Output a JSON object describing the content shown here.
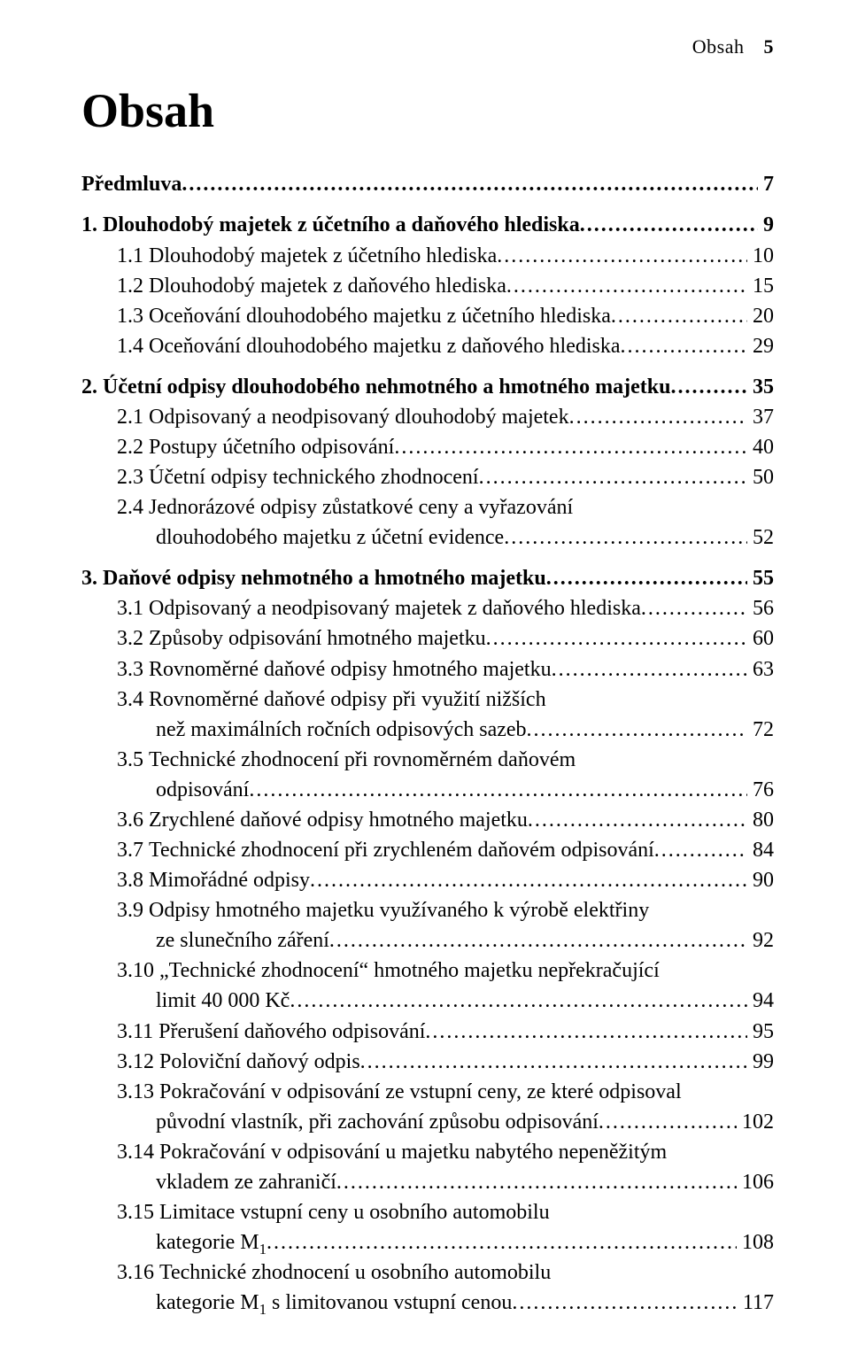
{
  "running_head": {
    "label": "Obsah",
    "page_number": "5"
  },
  "title": "Obsah",
  "typography": {
    "title_fontsize_pt": 40,
    "body_fontsize_pt": 18,
    "running_head_fontsize_pt": 16,
    "font_family": "Times New Roman",
    "text_color": "#000000",
    "background_color": "#ffffff"
  },
  "toc": [
    {
      "num": "",
      "text": "Předmluva",
      "page": "7",
      "indent": 0,
      "bold": true
    },
    {
      "num": "1.",
      "text": "Dlouhodobý majetek z účetního a daňového hlediska",
      "page": "9",
      "indent": 0,
      "bold": true
    },
    {
      "num": "1.1",
      "text": "Dlouhodobý majetek z účetního hlediska",
      "page": "10",
      "indent": 1
    },
    {
      "num": "1.2",
      "text": "Dlouhodobý majetek z daňového hlediska",
      "page": "15",
      "indent": 1
    },
    {
      "num": "1.3",
      "text": "Oceňování dlouhodobého majetku z účetního hlediska",
      "page": "20",
      "indent": 1
    },
    {
      "num": "1.4",
      "text": "Oceňování dlouhodobého majetku z daňového hlediska",
      "page": "29",
      "indent": 1
    },
    {
      "num": "2.",
      "text": "Účetní odpisy dlouhodobého nehmotného a hmotného majetku",
      "page": "35",
      "indent": 0,
      "bold": true
    },
    {
      "num": "2.1",
      "text": "Odpisovaný a neodpisovaný dlouhodobý majetek",
      "page": "37",
      "indent": 1
    },
    {
      "num": "2.2",
      "text": "Postupy účetního odpisování",
      "page": "40",
      "indent": 1
    },
    {
      "num": "2.3",
      "text": "Účetní odpisy technického zhodnocení",
      "page": "50",
      "indent": 1
    },
    {
      "num": "2.4",
      "text": "Jednorázové odpisy zůstatkové ceny a vyřazování",
      "cont": "dlouhodobého majetku z účetní evidence",
      "page": "52",
      "indent": 1
    },
    {
      "num": "3.",
      "text": "Daňové odpisy nehmotného a hmotného majetku",
      "page": "55",
      "indent": 0,
      "bold": true
    },
    {
      "num": "3.1",
      "text": "Odpisovaný a neodpisovaný majetek z daňového hlediska",
      "page": "56",
      "indent": 1
    },
    {
      "num": "3.2",
      "text": "Způsoby odpisování hmotného majetku",
      "page": "60",
      "indent": 1
    },
    {
      "num": "3.3",
      "text": "Rovnoměrné daňové odpisy hmotného majetku",
      "page": "63",
      "indent": 1
    },
    {
      "num": "3.4",
      "text": "Rovnoměrné daňové odpisy při využití nižších",
      "cont": "než maximálních ročních odpisových sazeb",
      "page": "72",
      "indent": 1
    },
    {
      "num": "3.5",
      "text": "Technické zhodnocení při rovnoměrném daňovém",
      "cont": "odpisování",
      "page": "76",
      "indent": 1
    },
    {
      "num": "3.6",
      "text": "Zrychlené daňové odpisy hmotného majetku",
      "page": "80",
      "indent": 1
    },
    {
      "num": "3.7",
      "text": "Technické zhodnocení při zrychleném daňovém odpisování",
      "page": "84",
      "indent": 1
    },
    {
      "num": "3.8",
      "text": "Mimořádné odpisy",
      "page": "90",
      "indent": 1
    },
    {
      "num": "3.9",
      "text": "Odpisy hmotného majetku využívaného k výrobě elektřiny",
      "cont": "ze slunečního záření",
      "page": "92",
      "indent": 1
    },
    {
      "num": "3.10",
      "text": "„Technické zhodnocení“ hmotného majetku nepřekračující",
      "cont": "limit 40 000 Kč",
      "page": "94",
      "indent": 1
    },
    {
      "num": "3.11",
      "text": "Přerušení daňového odpisování",
      "page": "95",
      "indent": 1
    },
    {
      "num": "3.12",
      "text": "Poloviční daňový odpis",
      "page": "99",
      "indent": 1
    },
    {
      "num": "3.13",
      "text": "Pokračování v odpisování ze vstupní ceny, ze které odpisoval",
      "cont": "původní vlastník, při zachování způsobu odpisování",
      "page": "102",
      "indent": 1
    },
    {
      "num": "3.14",
      "text": "Pokračování v odpisování u majetku nabytého nepeněžitým",
      "cont": "vkladem ze zahraničí",
      "page": "106",
      "indent": 1
    },
    {
      "num": "3.15",
      "text": "Limitace vstupní ceny u osobního automobilu",
      "cont_html": "kategorie M<sub>1</sub>",
      "page": "108",
      "indent": 1
    },
    {
      "num": "3.16",
      "text": "Technické zhodnocení u osobního automobilu",
      "cont_html": "kategorie M<sub>1</sub> s limitovanou vstupní cenou",
      "page": "117",
      "indent": 1
    }
  ]
}
